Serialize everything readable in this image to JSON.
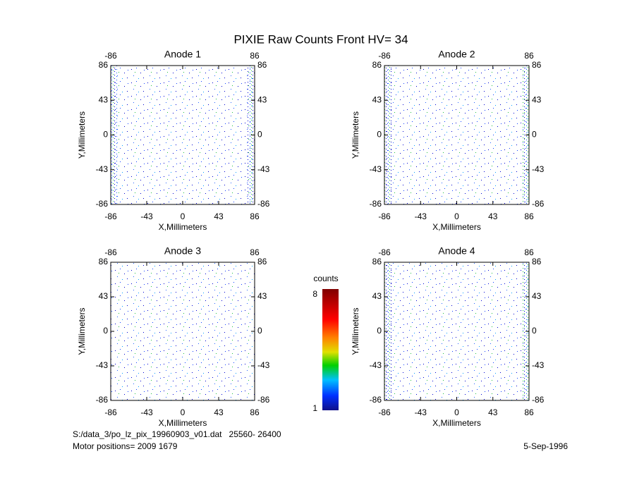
{
  "title": "PIXIE Raw Counts Front HV= 34",
  "chart_data": [
    {
      "type": "heatmap",
      "title": "Anode 1",
      "x_label": "X,Millimeters",
      "y_label": "Y,Millimeters",
      "xlim": [
        -86,
        86
      ],
      "ylim": [
        -86,
        86
      ],
      "xticks": [
        -86,
        -43,
        0,
        43,
        86
      ],
      "yticks": [
        -86,
        -43,
        0,
        43,
        86
      ]
    },
    {
      "type": "heatmap",
      "title": "Anode 2",
      "x_label": "X,Millimeters",
      "y_label": "Y,Millimeters",
      "xlim": [
        -86,
        86
      ],
      "ylim": [
        -86,
        86
      ],
      "xticks": [
        -86,
        -43,
        0,
        43,
        86
      ],
      "yticks": [
        -86,
        -43,
        0,
        43,
        86
      ]
    },
    {
      "type": "heatmap",
      "title": "Anode 3",
      "x_label": "X,Millimeters",
      "y_label": "Y,Millimeters",
      "xlim": [
        -86,
        86
      ],
      "ylim": [
        -86,
        86
      ],
      "xticks": [
        -86,
        -43,
        0,
        43,
        86
      ],
      "yticks": [
        -86,
        -43,
        0,
        43,
        86
      ]
    },
    {
      "type": "heatmap",
      "title": "Anode 4",
      "x_label": "X,Millimeters",
      "y_label": "Y,Millimeters",
      "xlim": [
        -86,
        86
      ],
      "ylim": [
        -86,
        86
      ],
      "xticks": [
        -86,
        -43,
        0,
        43,
        86
      ],
      "yticks": [
        -86,
        -43,
        0,
        43,
        86
      ]
    }
  ],
  "colorbar": {
    "label": "counts",
    "lim": [
      1,
      8
    ],
    "ticks": [
      1,
      8
    ]
  },
  "footer": {
    "file": "S:/data_3/po_lz_pix_19960903_v01.dat   25560- 26400",
    "motor": "Motor positions= 2009 1679",
    "date": "5-Sep-1996"
  }
}
